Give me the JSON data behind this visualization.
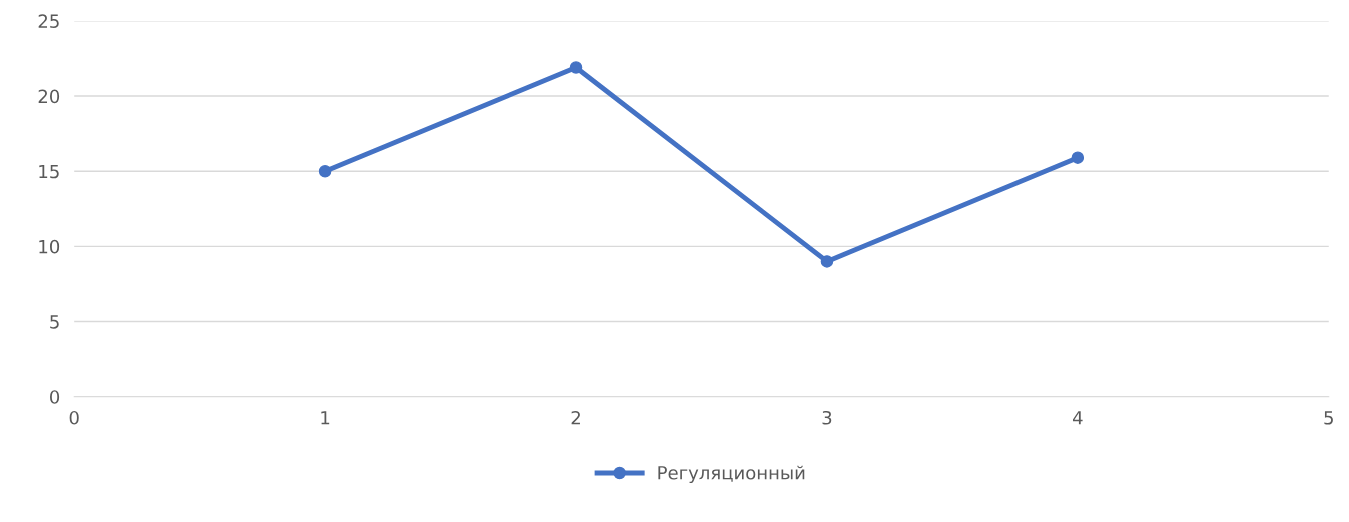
{
  "chart_data": {
    "type": "line",
    "x": [
      1,
      2,
      3,
      4
    ],
    "series": [
      {
        "name": "Регуляционный",
        "color": "#4472c4",
        "values": [
          15,
          21.9,
          9,
          15.9
        ]
      }
    ],
    "xlim": [
      0,
      5
    ],
    "xticks": [
      0,
      1,
      2,
      3,
      4,
      5
    ],
    "ylim": [
      0,
      25
    ],
    "yticks": [
      0,
      5,
      10,
      15,
      20,
      25
    ],
    "grid": "y",
    "legend": "bottom",
    "marker": "circle",
    "line_style": "solid"
  }
}
